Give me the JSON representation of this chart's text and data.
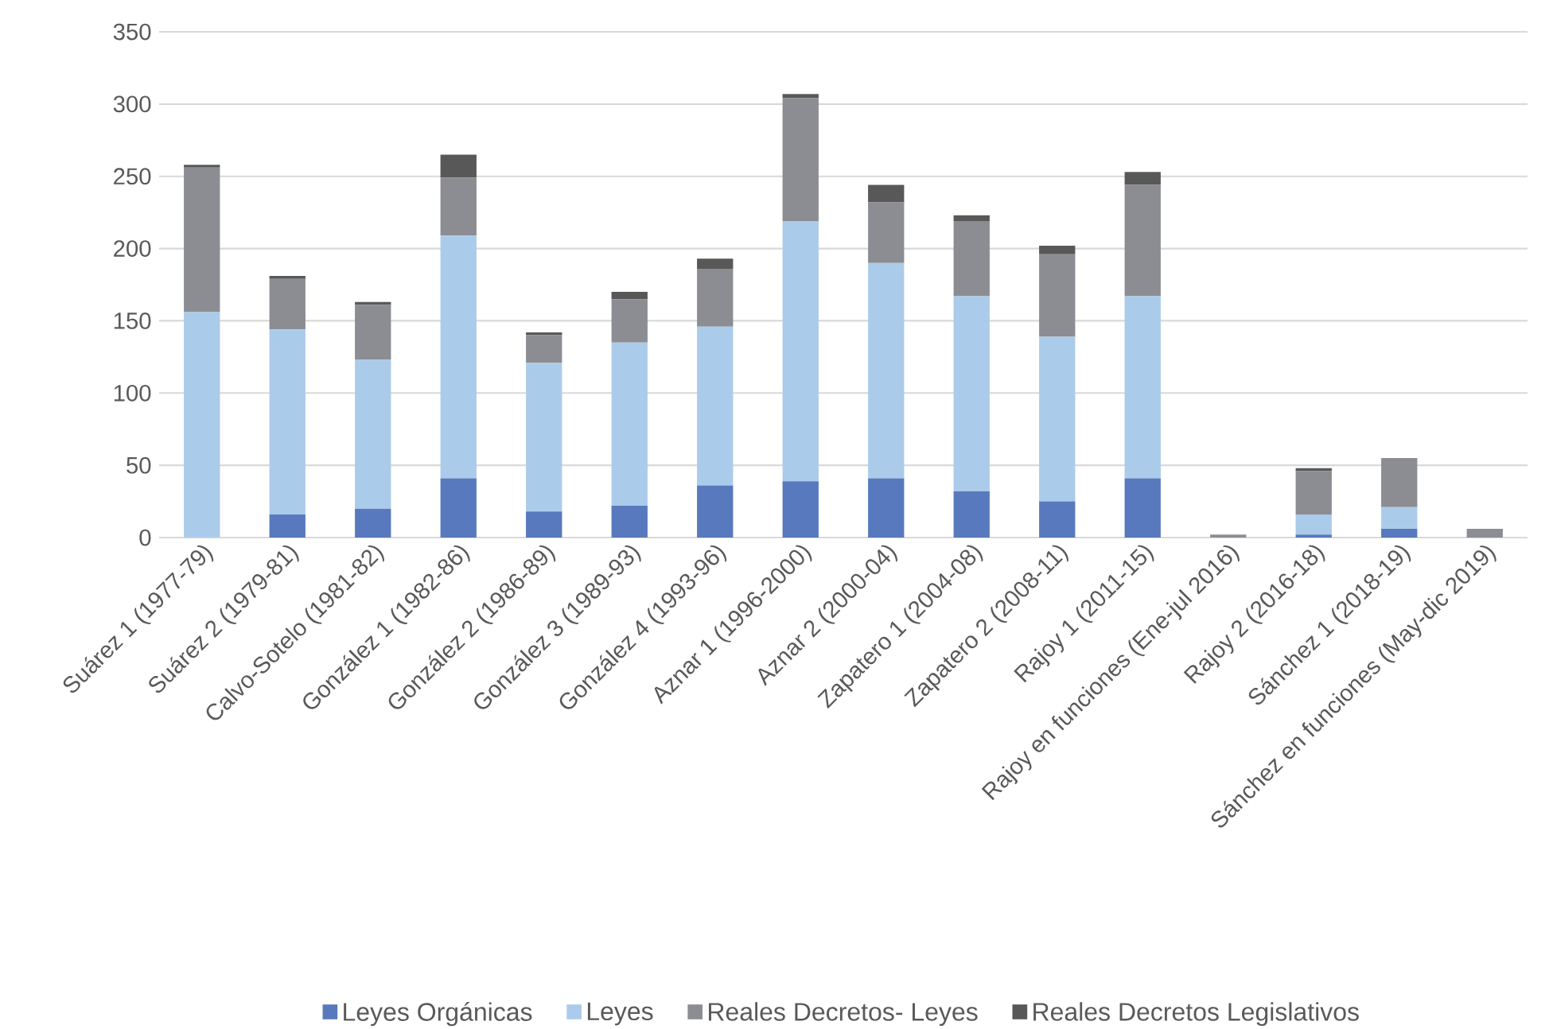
{
  "chart_data": {
    "type": "bar",
    "stacked": true,
    "categories": [
      "Suárez 1 (1977-79)",
      "Suárez 2 (1979-81)",
      "Calvo-Sotelo (1981-82)",
      "González 1 (1982-86)",
      "González 2 (1986-89)",
      "González 3 (1989-93)",
      "González 4 (1993-96)",
      "Aznar 1 (1996-2000)",
      "Aznar 2 (2000-04)",
      "Zapatero 1 (2004-08)",
      "Zapatero 2 (2008-11)",
      "Rajoy 1 (2011-15)",
      "Rajoy en funciones (Ene-jul 2016)",
      "Rajoy 2 (2016-18)",
      "Sánchez 1 (2018-19)",
      "Sánchez en funciones (May-dic 2019)"
    ],
    "series": [
      {
        "name": "Leyes Orgánicas",
        "color": "#5879bd",
        "values": [
          0,
          16,
          20,
          41,
          18,
          22,
          36,
          39,
          41,
          32,
          25,
          41,
          0,
          2,
          6,
          0
        ]
      },
      {
        "name": "Leyes",
        "color": "#abcbea",
        "values": [
          156,
          128,
          103,
          168,
          103,
          113,
          110,
          180,
          149,
          135,
          114,
          126,
          0,
          14,
          15,
          0
        ]
      },
      {
        "name": "Reales Decretos- Leyes",
        "color": "#8c8d92",
        "values": [
          100,
          35,
          38,
          40,
          19,
          30,
          40,
          85,
          42,
          52,
          57,
          77,
          2,
          30,
          34,
          6
        ]
      },
      {
        "name": "Reales Decretos Legislativos",
        "color": "#585858",
        "values": [
          2,
          2,
          2,
          16,
          2,
          5,
          7,
          3,
          12,
          4,
          6,
          9,
          0,
          2,
          0,
          0
        ]
      }
    ],
    "ylim": [
      0,
      350
    ],
    "yticks": [
      0,
      50,
      100,
      150,
      200,
      250,
      300,
      350
    ],
    "grid": "y",
    "legend": "bottom"
  }
}
